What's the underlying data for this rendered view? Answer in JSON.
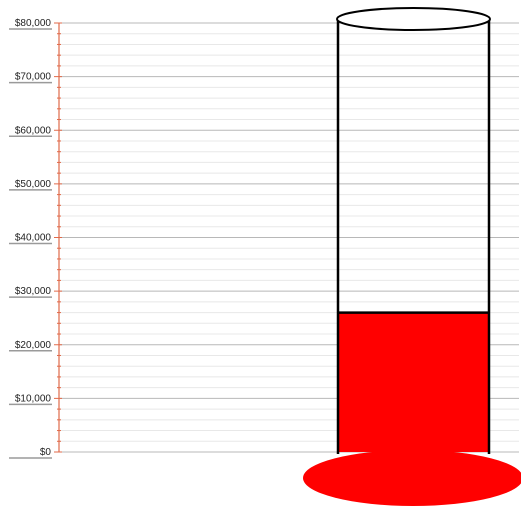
{
  "chart_data": {
    "type": "bar",
    "style": "thermometer-goal",
    "title": "",
    "xlabel": "",
    "ylabel": "",
    "ylim": [
      0,
      80000
    ],
    "ytick_labels": [
      "$0",
      "$10,000",
      "$20,000",
      "$30,000",
      "$40,000",
      "$50,000",
      "$60,000",
      "$70,000",
      "$80,000"
    ],
    "ytick_values": [
      0,
      10000,
      20000,
      30000,
      40000,
      50000,
      60000,
      70000,
      80000
    ],
    "minor_ticks_per_major": 5,
    "grid": true,
    "values": [
      26000
    ],
    "colors": {
      "fill": "#ff0000",
      "outline": "#000000",
      "axis": "#e06a4a",
      "grid_major": "#b8b8b8",
      "grid_minor": "#e8e8e8"
    }
  }
}
